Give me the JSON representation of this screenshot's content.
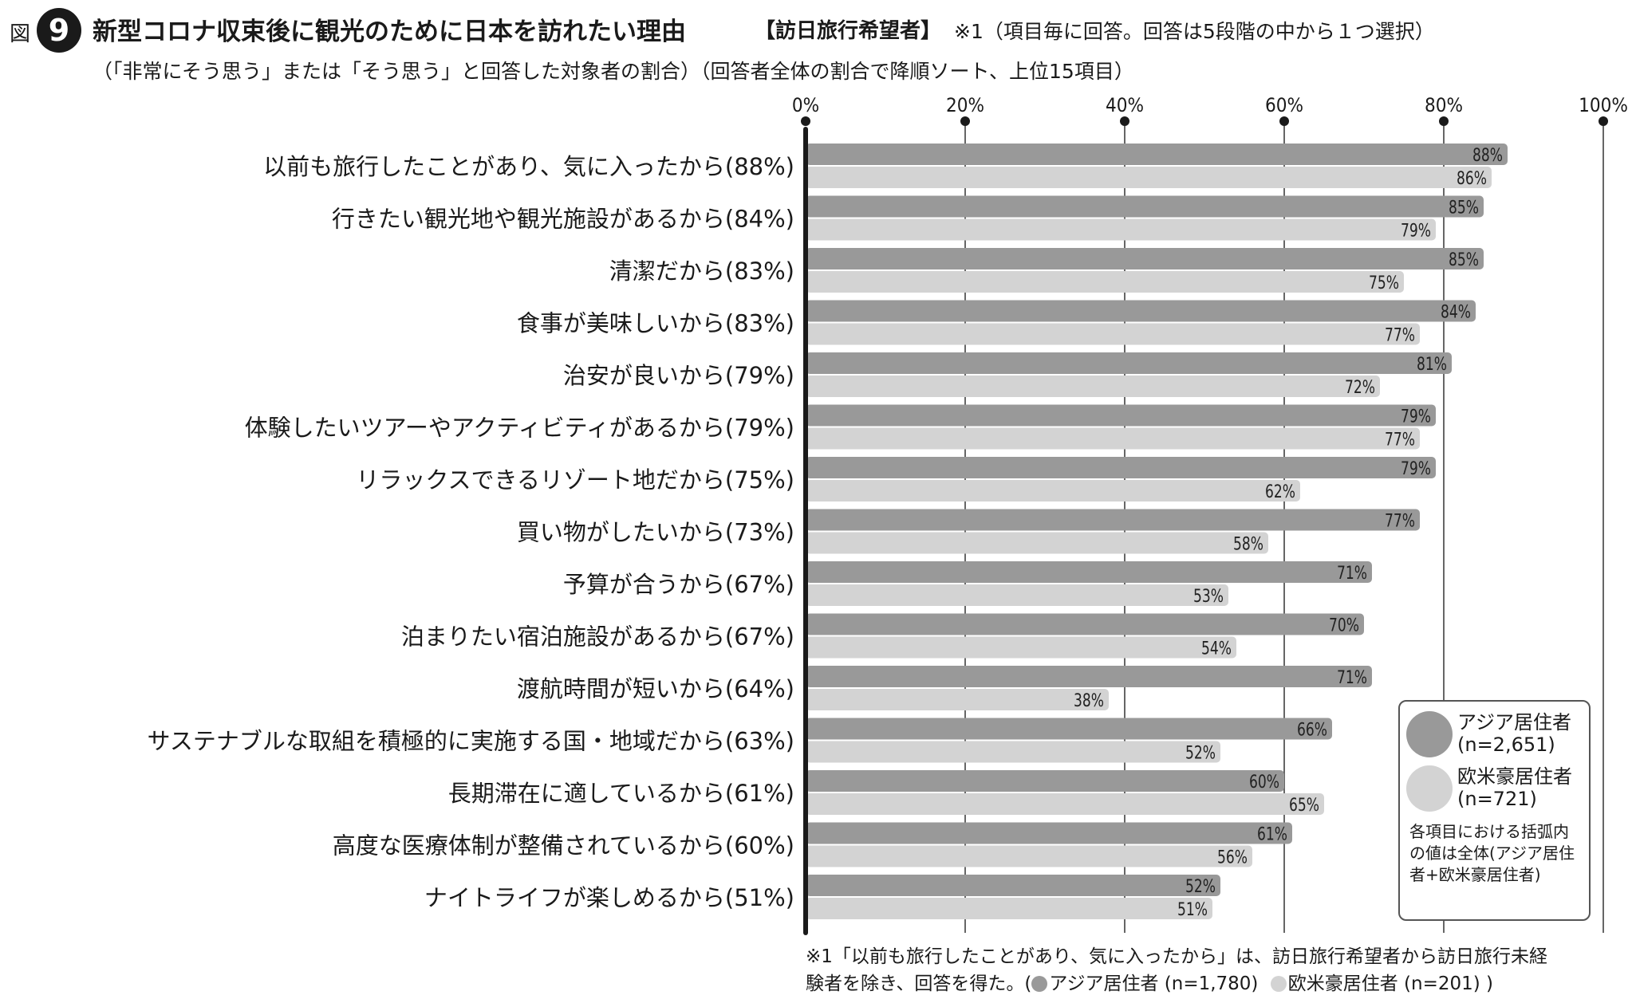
{
  "header": {
    "fig_label": "図",
    "fig_number": "9",
    "title": "新型コロナ収束後に観光のために日本を訪れたい理由",
    "title_tag": "【訪日旅行希望者】",
    "title_note": "※1（項目毎に回答。回答は5段階の中から１つ選択）",
    "subtitle": "（「非常にそう思う」または「そう思う」と回答した対象者の割合）（回答者全体の割合で降順ソート、上位15項目）"
  },
  "legend": {
    "items": [
      {
        "label": "アジア居住者\n(n=2,651)",
        "color": "#999999"
      },
      {
        "label": "欧米豪居住者\n(n=721)",
        "color": "#d3d3d3"
      }
    ],
    "note": "各項目における括弧内の値は全体(アジア居住者+欧米豪居住者)"
  },
  "footnote": {
    "line1": "※1「以前も旅行したことがあり、気に入ったから」は、訪日旅行希望者から訪日旅行未経",
    "line2_prefix": "験者を除き、回答を得た。(",
    "asia_note": "アジア居住者 (n=1,780)",
    "west_note": "欧米豪居住者 (n=201) )"
  },
  "chart_data": {
    "type": "bar",
    "orientation": "horizontal",
    "xlim": [
      0,
      100
    ],
    "x_ticks": [
      "0%",
      "20%",
      "40%",
      "60%",
      "80%",
      "100%"
    ],
    "grid": true,
    "legend_placement": "bottom-right",
    "categories": [
      "以前も旅行したことがあり、気に入ったから(88%)",
      "行きたい観光地や観光施設があるから(84%)",
      "清潔だから(83%)",
      "食事が美味しいから(83%)",
      "治安が良いから(79%)",
      "体験したいツアーやアクティビティがあるから(79%)",
      "リラックスできるリゾート地だから(75%)",
      "買い物がしたいから(73%)",
      "予算が合うから(67%)",
      "泊まりたい宿泊施設があるから(67%)",
      "渡航時間が短いから(64%)",
      "サステナブルな取組を積極的に実施する国・地域だから(63%)",
      "長期滞在に適しているから(61%)",
      "高度な医療体制が整備されているから(60%)",
      "ナイトライフが楽しめるから(51%)"
    ],
    "series": [
      {
        "name": "アジア居住者(n=2,651)",
        "color": "#999999",
        "values": [
          88,
          85,
          85,
          84,
          81,
          79,
          79,
          77,
          71,
          70,
          71,
          66,
          60,
          61,
          52
        ]
      },
      {
        "name": "欧米豪居住者(n=721)",
        "color": "#d3d3d3",
        "values": [
          86,
          79,
          75,
          77,
          72,
          77,
          62,
          58,
          53,
          54,
          38,
          52,
          65,
          56,
          51
        ]
      }
    ]
  }
}
